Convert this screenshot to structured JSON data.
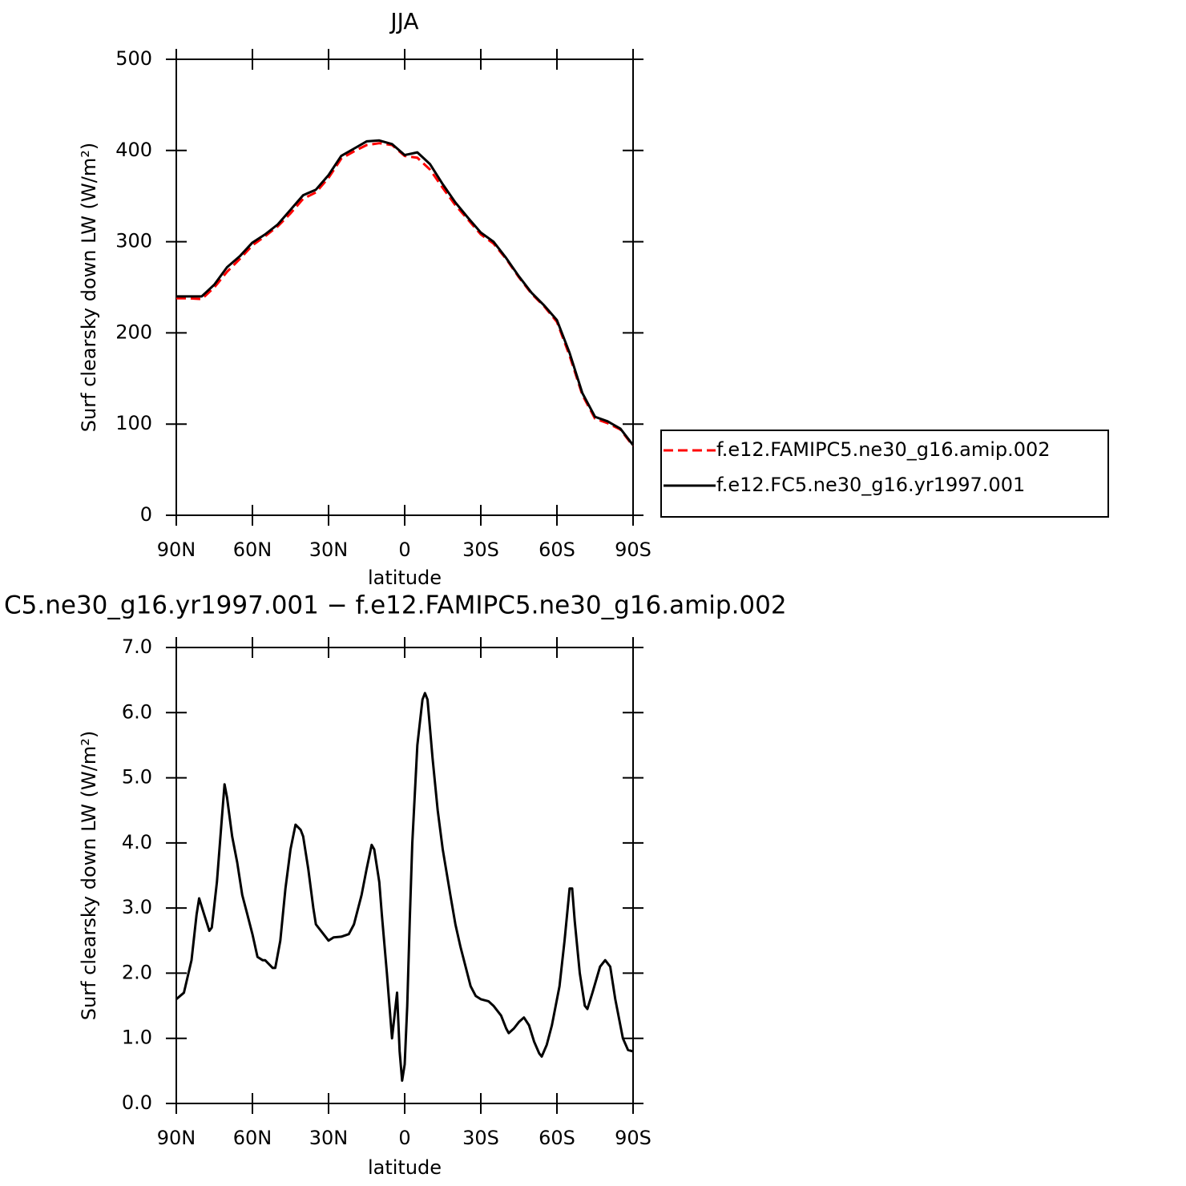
{
  "chart_data": [
    {
      "type": "line",
      "title": "JJA",
      "xlabel": "latitude",
      "ylabel": "Surf clearsky down LW (W/m²)",
      "x": [
        90,
        85,
        80,
        75,
        70,
        65,
        60,
        55,
        50,
        45,
        40,
        35,
        30,
        25,
        20,
        15,
        10,
        5,
        0,
        -5,
        -10,
        -15,
        -20,
        -25,
        -30,
        -35,
        -40,
        -45,
        -50,
        -55,
        -60,
        -65,
        -70,
        -75,
        -80,
        -85,
        -90
      ],
      "series": [
        {
          "name": "f.e12.FAMIPC5.ne30_g16.amip.002",
          "color": "#ff0000",
          "line_style": "dashed",
          "values": [
            238,
            238,
            237,
            250,
            267,
            281,
            296,
            306,
            317,
            331,
            347,
            354,
            370,
            391,
            399,
            406,
            408,
            406,
            394,
            392,
            379,
            359,
            340,
            324,
            308,
            298,
            281,
            261,
            243,
            229,
            212,
            175,
            132,
            106,
            101,
            94,
            76
          ]
        },
        {
          "name": "f.e12.FC5.ne30_g16.yr1997.001",
          "color": "#000000",
          "line_style": "solid",
          "values": [
            240,
            240,
            240,
            253,
            272,
            284,
            299,
            308,
            319,
            335,
            351,
            357,
            373,
            394,
            402,
            410,
            411,
            407,
            395,
            398,
            385,
            363,
            343,
            326,
            310,
            300,
            282,
            262,
            244,
            230,
            214,
            178,
            134,
            108,
            103,
            95,
            77
          ]
        }
      ],
      "xlim": [
        90,
        -90
      ],
      "xticks": [
        {
          "value": 90,
          "label": "90N"
        },
        {
          "value": 60,
          "label": "60N"
        },
        {
          "value": 30,
          "label": "30N"
        },
        0,
        {
          "value": -30,
          "label": "30S"
        },
        {
          "value": -60,
          "label": "60S"
        },
        {
          "value": -90,
          "label": "90S"
        }
      ],
      "ylim": [
        0,
        500
      ],
      "yticks": [
        0,
        100,
        200,
        300,
        400,
        500
      ],
      "legend": "right"
    },
    {
      "type": "line",
      "title": "C5.ne30_g16.yr1997.001 − f.e12.FAMIPC5.ne30_g16.amip.002",
      "xlabel": "latitude",
      "ylabel": "Surf clearsky down LW (W/m²)",
      "x": [
        90,
        87,
        84,
        82,
        81,
        79,
        77,
        76,
        74,
        72,
        71,
        70,
        68,
        66,
        64,
        62,
        60,
        58,
        56,
        55,
        52,
        51,
        49,
        47,
        45,
        43,
        41,
        40,
        38,
        36,
        35,
        32,
        30,
        28,
        25,
        22,
        20,
        17,
        15,
        13,
        12,
        10,
        9,
        7,
        5,
        3,
        2,
        1,
        0,
        -1,
        -2,
        -3,
        -5,
        -7,
        -8,
        -9,
        -11,
        -13,
        -15,
        -18,
        -20,
        -22,
        -24,
        -26,
        -28,
        -30,
        -33,
        -35,
        -38,
        -40,
        -41,
        -43,
        -45,
        -47,
        -49,
        -51,
        -53,
        -54,
        -56,
        -58,
        -61,
        -63,
        -65,
        -66,
        -67,
        -69,
        -71,
        -72,
        -74,
        -77,
        -79,
        -81,
        -83,
        -86,
        -88,
        -90
      ],
      "series": [
        {
          "color": "#000000",
          "line_style": "solid",
          "values": [
            1.6,
            1.7,
            2.2,
            2.9,
            3.15,
            2.9,
            2.65,
            2.7,
            3.4,
            4.4,
            4.9,
            4.7,
            4.1,
            3.7,
            3.2,
            2.9,
            2.6,
            2.25,
            2.2,
            2.2,
            2.08,
            2.08,
            2.5,
            3.3,
            3.9,
            4.28,
            4.2,
            4.1,
            3.6,
            3.0,
            2.75,
            2.6,
            2.5,
            2.55,
            2.56,
            2.6,
            2.75,
            3.2,
            3.6,
            3.97,
            3.9,
            3.4,
            2.9,
            2.0,
            1.0,
            1.7,
            0.8,
            0.35,
            0.6,
            1.5,
            2.8,
            4.0,
            5.5,
            6.2,
            6.3,
            6.2,
            5.3,
            4.5,
            3.9,
            3.2,
            2.75,
            2.4,
            2.1,
            1.8,
            1.65,
            1.6,
            1.57,
            1.5,
            1.35,
            1.15,
            1.08,
            1.15,
            1.25,
            1.32,
            1.2,
            0.95,
            0.77,
            0.72,
            0.9,
            1.2,
            1.8,
            2.5,
            3.3,
            3.3,
            2.8,
            2.0,
            1.5,
            1.45,
            1.7,
            2.1,
            2.2,
            2.1,
            1.6,
            1.0,
            0.82,
            0.8
          ]
        }
      ],
      "xlim": [
        90,
        -90
      ],
      "xticks": [
        {
          "value": 90,
          "label": "90N"
        },
        {
          "value": 60,
          "label": "60N"
        },
        {
          "value": 30,
          "label": "30N"
        },
        0,
        {
          "value": -30,
          "label": "30S"
        },
        {
          "value": -60,
          "label": "60S"
        },
        {
          "value": -90,
          "label": "90S"
        }
      ],
      "ylim": [
        0,
        7
      ],
      "yticks": [
        {
          "value": 0,
          "label": "0.0"
        },
        {
          "value": 1,
          "label": "1.0"
        },
        {
          "value": 2,
          "label": "2.0"
        },
        {
          "value": 3,
          "label": "3.0"
        },
        {
          "value": 4,
          "label": "4.0"
        },
        {
          "value": 5,
          "label": "5.0"
        },
        {
          "value": 6,
          "label": "6.0"
        },
        {
          "value": 7,
          "label": "7.0"
        }
      ]
    }
  ]
}
